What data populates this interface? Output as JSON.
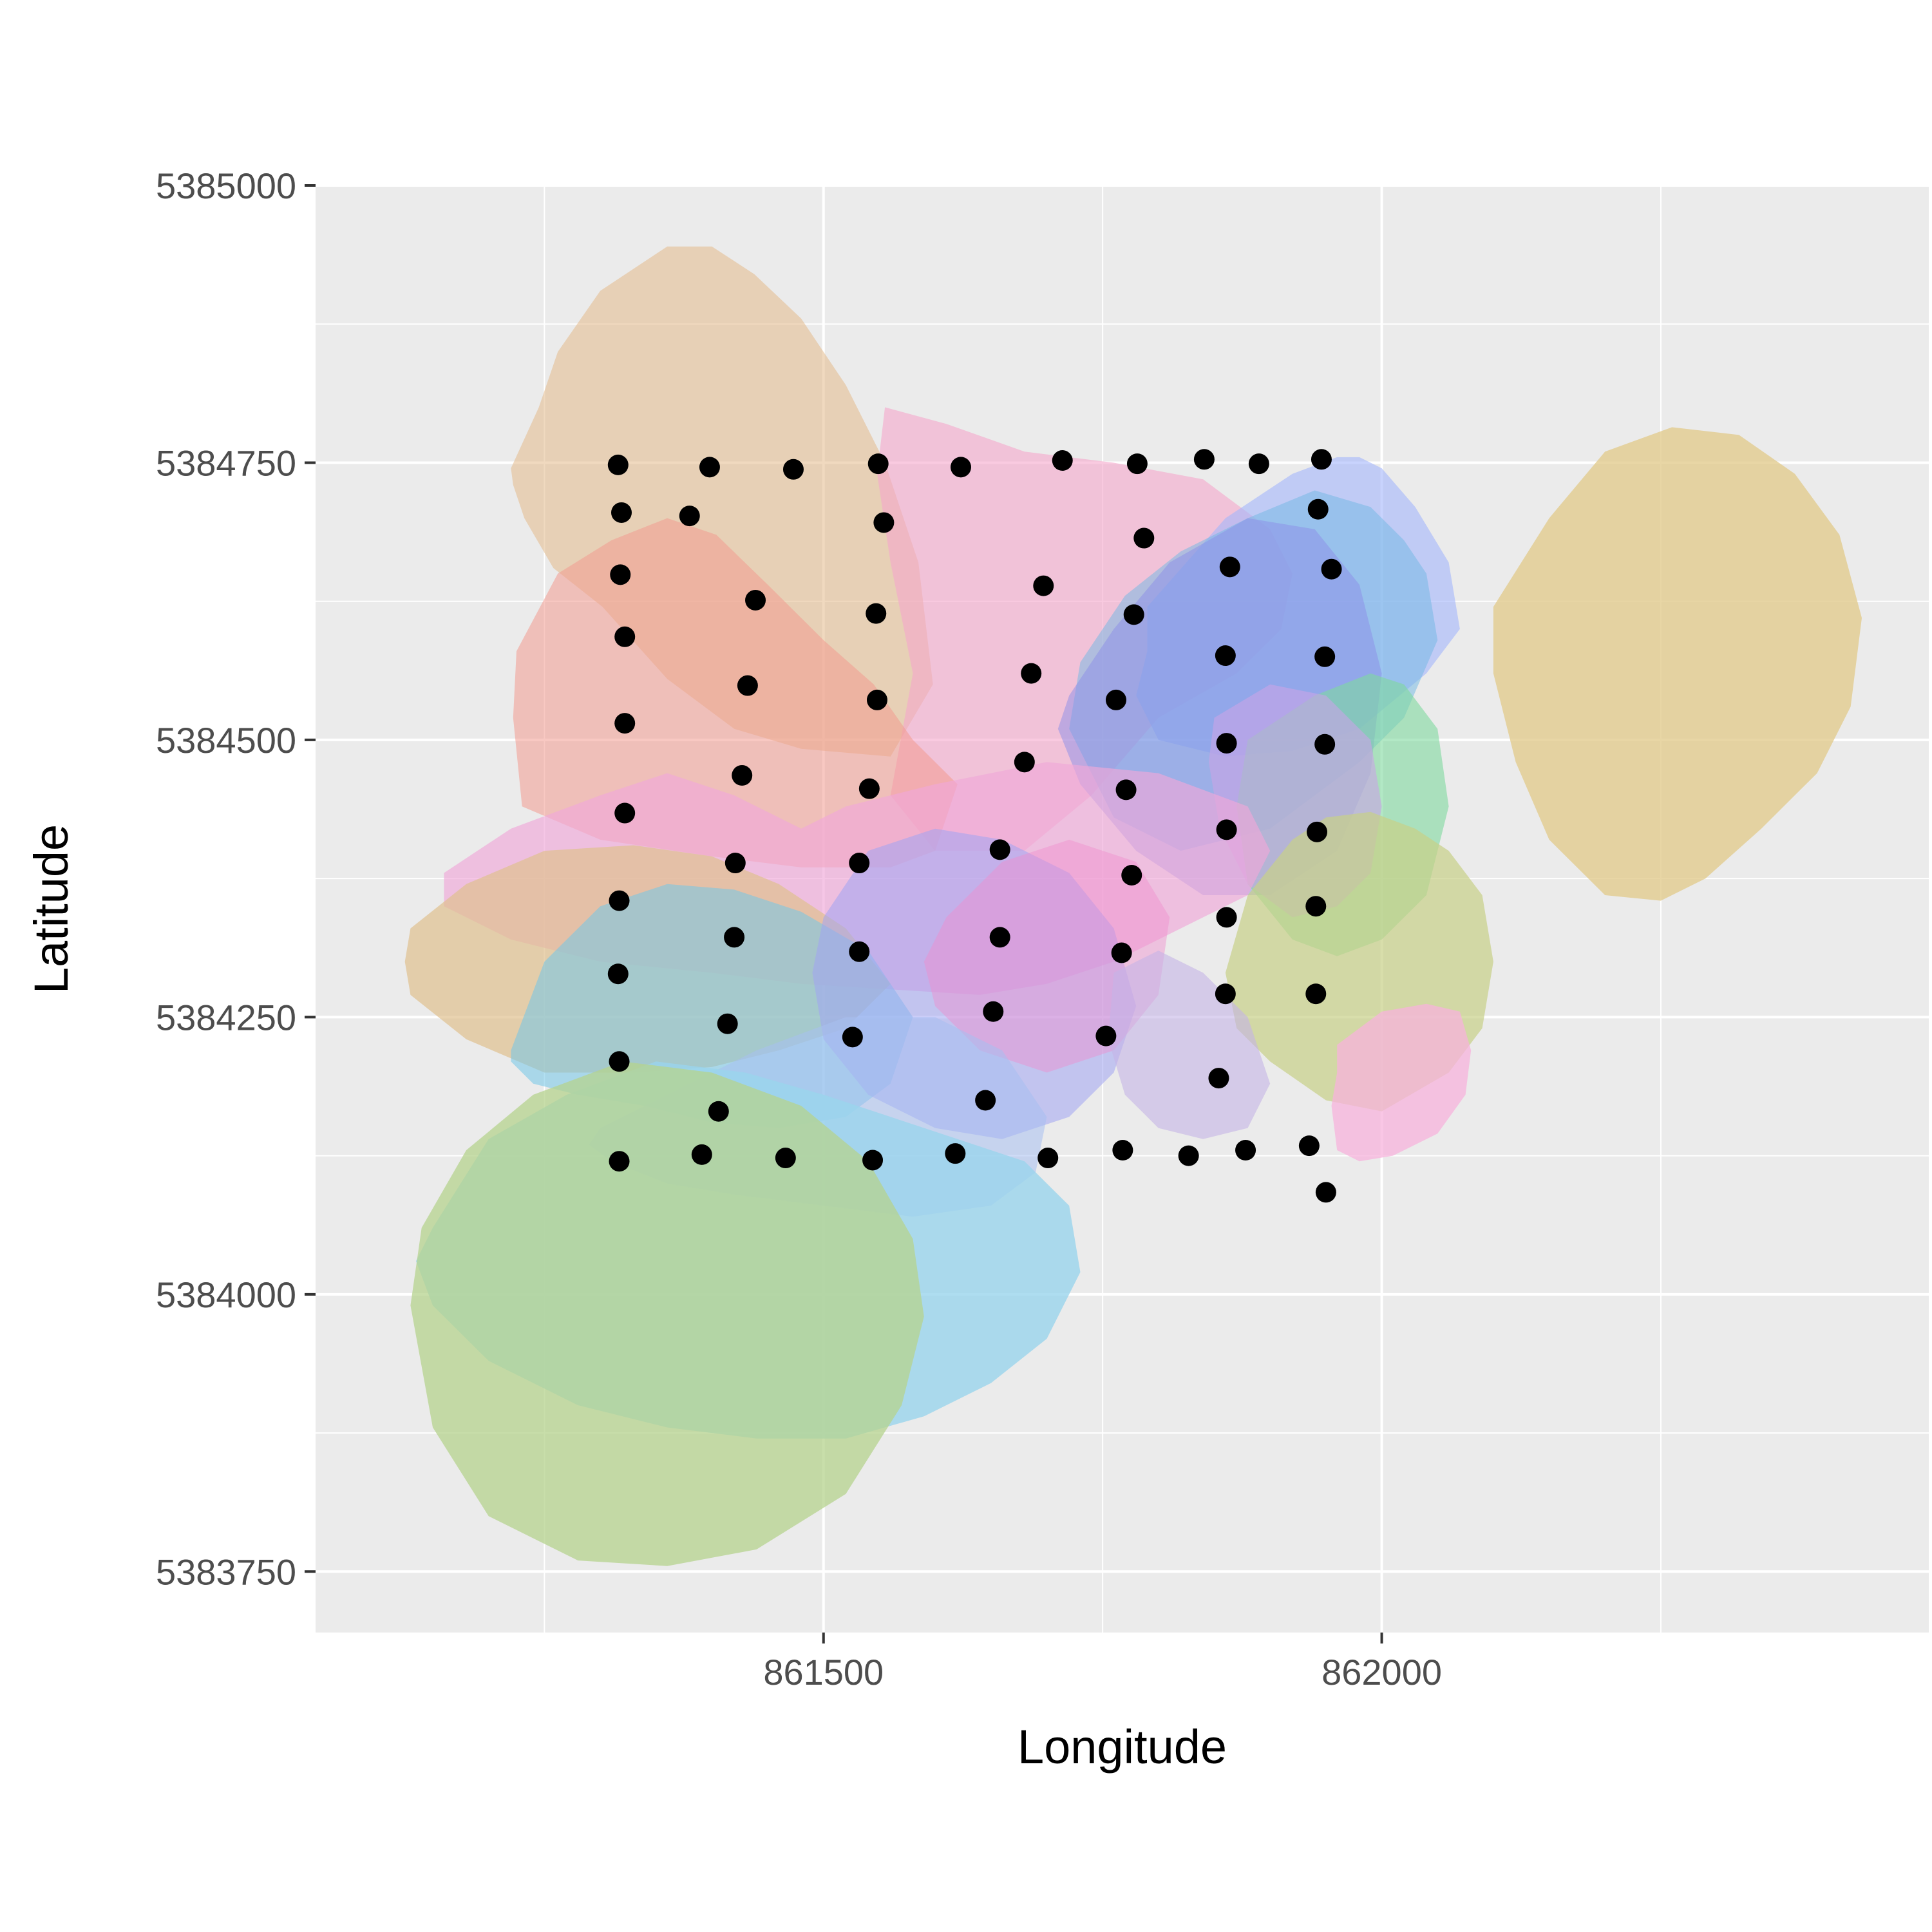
{
  "chart_data": {
    "type": "scatter",
    "xlabel": "Longitude",
    "ylabel": "Latitude",
    "xlim": [
      861045,
      862490
    ],
    "ylim": [
      5383695,
      5385000
    ],
    "x_ticks": [
      861500,
      862000
    ],
    "x_minor_ticks": [
      861250,
      861750,
      862250
    ],
    "y_ticks": [
      5383750,
      5384000,
      5384250,
      5384500,
      5384750,
      5385000
    ],
    "y_minor_ticks": [
      5383875,
      5384125,
      5384375,
      5384625,
      5384875
    ],
    "grid": true,
    "legend": "none",
    "panel_background": "#ebebeb",
    "gridline_color": "#ffffff",
    "point_color": "#000000",
    "points": [
      {
        "x": 861316,
        "y": 5384748
      },
      {
        "x": 861398,
        "y": 5384746
      },
      {
        "x": 861473,
        "y": 5384744
      },
      {
        "x": 861549,
        "y": 5384749
      },
      {
        "x": 861623,
        "y": 5384746
      },
      {
        "x": 861714,
        "y": 5384752
      },
      {
        "x": 861781,
        "y": 5384749
      },
      {
        "x": 861841,
        "y": 5384753
      },
      {
        "x": 861890,
        "y": 5384749
      },
      {
        "x": 861946,
        "y": 5384753
      },
      {
        "x": 861319,
        "y": 5384705
      },
      {
        "x": 861380,
        "y": 5384702
      },
      {
        "x": 861554,
        "y": 5384696
      },
      {
        "x": 861787,
        "y": 5384682
      },
      {
        "x": 861943,
        "y": 5384708
      },
      {
        "x": 861318,
        "y": 5384649
      },
      {
        "x": 861439,
        "y": 5384626
      },
      {
        "x": 861547,
        "y": 5384614
      },
      {
        "x": 861697,
        "y": 5384639
      },
      {
        "x": 861864,
        "y": 5384656
      },
      {
        "x": 861955,
        "y": 5384654
      },
      {
        "x": 861778,
        "y": 5384613
      },
      {
        "x": 861322,
        "y": 5384593
      },
      {
        "x": 861432,
        "y": 5384549
      },
      {
        "x": 861548,
        "y": 5384536
      },
      {
        "x": 861686,
        "y": 5384560
      },
      {
        "x": 861762,
        "y": 5384536
      },
      {
        "x": 861860,
        "y": 5384576
      },
      {
        "x": 861949,
        "y": 5384575
      },
      {
        "x": 861322,
        "y": 5384515
      },
      {
        "x": 861427,
        "y": 5384468
      },
      {
        "x": 861541,
        "y": 5384456
      },
      {
        "x": 861680,
        "y": 5384480
      },
      {
        "x": 861771,
        "y": 5384455
      },
      {
        "x": 861861,
        "y": 5384497
      },
      {
        "x": 861949,
        "y": 5384496
      },
      {
        "x": 861322,
        "y": 5384434
      },
      {
        "x": 861421,
        "y": 5384389
      },
      {
        "x": 861532,
        "y": 5384389
      },
      {
        "x": 861658,
        "y": 5384401
      },
      {
        "x": 861776,
        "y": 5384378
      },
      {
        "x": 861861,
        "y": 5384419
      },
      {
        "x": 861942,
        "y": 5384417
      },
      {
        "x": 861317,
        "y": 5384355
      },
      {
        "x": 861420,
        "y": 5384322
      },
      {
        "x": 861532,
        "y": 5384309
      },
      {
        "x": 861658,
        "y": 5384322
      },
      {
        "x": 861767,
        "y": 5384308
      },
      {
        "x": 861861,
        "y": 5384340
      },
      {
        "x": 861941,
        "y": 5384350
      },
      {
        "x": 861316,
        "y": 5384289
      },
      {
        "x": 861414,
        "y": 5384244
      },
      {
        "x": 861526,
        "y": 5384232
      },
      {
        "x": 861652,
        "y": 5384255
      },
      {
        "x": 861753,
        "y": 5384233
      },
      {
        "x": 861860,
        "y": 5384271
      },
      {
        "x": 861941,
        "y": 5384271
      },
      {
        "x": 861317,
        "y": 5384210
      },
      {
        "x": 861406,
        "y": 5384165
      },
      {
        "x": 861645,
        "y": 5384175
      },
      {
        "x": 861854,
        "y": 5384195
      },
      {
        "x": 861317,
        "y": 5384120
      },
      {
        "x": 861391,
        "y": 5384126
      },
      {
        "x": 861466,
        "y": 5384123
      },
      {
        "x": 861544,
        "y": 5384121
      },
      {
        "x": 861618,
        "y": 5384127
      },
      {
        "x": 861701,
        "y": 5384123
      },
      {
        "x": 861768,
        "y": 5384130
      },
      {
        "x": 861827,
        "y": 5384125
      },
      {
        "x": 861878,
        "y": 5384130
      },
      {
        "x": 861935,
        "y": 5384134
      },
      {
        "x": 861950,
        "y": 5384092
      }
    ],
    "hulls": [
      {
        "color": "#e3b98a",
        "opacity": 0.55,
        "x": [
          861220,
          861245,
          861262,
          861300,
          861360,
          861400,
          861438,
          861480,
          861520,
          861555,
          861585,
          861598,
          861560,
          861480,
          861420,
          861360,
          861302,
          861258,
          861232,
          861222
        ],
        "y": [
          5384745,
          5384800,
          5384850,
          5384905,
          5384945,
          5384945,
          5384920,
          5384880,
          5384820,
          5384750,
          5384660,
          5384550,
          5384485,
          5384492,
          5384510,
          5384555,
          5384620,
          5384655,
          5384700,
          5384730
        ]
      },
      {
        "color": "#f5a7cc",
        "opacity": 0.6,
        "x": [
          861555,
          861610,
          861680,
          861760,
          861840,
          861900,
          861920,
          861910,
          861870,
          861800,
          861740,
          861680,
          861600,
          861560,
          861580,
          861560,
          861548
        ],
        "y": [
          5384800,
          5384785,
          5384760,
          5384750,
          5384735,
          5384690,
          5384650,
          5384600,
          5384560,
          5384520,
          5384450,
          5384400,
          5384400,
          5384450,
          5384560,
          5384660,
          5384740
        ]
      },
      {
        "color": "#f29b90",
        "opacity": 0.55,
        "x": [
          861225,
          861262,
          861310,
          861360,
          861404,
          861450,
          861500,
          861545,
          861580,
          861620,
          861600,
          861560,
          861480,
          861400,
          861300,
          861230,
          861222
        ],
        "y": [
          5384580,
          5384650,
          5384680,
          5384700,
          5384685,
          5384640,
          5384590,
          5384550,
          5384500,
          5384460,
          5384400,
          5384385,
          5384385,
          5384395,
          5384410,
          5384440,
          5384520
        ]
      },
      {
        "color": "#e2cc8e",
        "opacity": 0.8,
        "x": [
          862100,
          862150,
          862200,
          862260,
          862320,
          862370,
          862410,
          862430,
          862420,
          862390,
          862340,
          862290,
          862250,
          862200,
          862150,
          862120,
          862100
        ],
        "y": [
          5384620,
          5384700,
          5384760,
          5384782,
          5384775,
          5384740,
          5384685,
          5384610,
          5384530,
          5384470,
          5384420,
          5384375,
          5384355,
          5384360,
          5384410,
          5384480,
          5384560
        ]
      },
      {
        "color": "#a4b6fb",
        "opacity": 0.6,
        "x": [
          861790,
          861860,
          861920,
          861960,
          861980,
          862000,
          862030,
          862060,
          862070,
          862040,
          861980,
          861920,
          861860,
          861800,
          861780,
          861790
        ],
        "y": [
          5384620,
          5384700,
          5384740,
          5384755,
          5384755,
          5384745,
          5384710,
          5384660,
          5384600,
          5384560,
          5384510,
          5384490,
          5384485,
          5384500,
          5384540,
          5384580
        ]
      },
      {
        "color": "#6fb8e4",
        "opacity": 0.5,
        "x": [
          861730,
          861770,
          861820,
          861880,
          861940,
          861990,
          862020,
          862040,
          862050,
          862020,
          861980,
          861900,
          861820,
          861760,
          861720
        ],
        "y": [
          5384570,
          5384630,
          5384670,
          5384700,
          5384725,
          5384710,
          5384680,
          5384650,
          5384590,
          5384520,
          5384480,
          5384420,
          5384400,
          5384430,
          5384510
        ]
      },
      {
        "color": "#8b8ee7",
        "opacity": 0.5,
        "x": [
          861720,
          861760,
          861810,
          861880,
          861940,
          861980,
          862000,
          861990,
          861960,
          861900,
          861840,
          861780,
          861730,
          861710
        ],
        "y": [
          5384540,
          5384600,
          5384660,
          5384700,
          5384690,
          5384640,
          5384560,
          5384470,
          5384400,
          5384360,
          5384360,
          5384400,
          5384460,
          5384510
        ]
      },
      {
        "color": "#7ed99e",
        "opacity": 0.6,
        "x": [
          861880,
          861940,
          861990,
          862020,
          862050,
          862060,
          862040,
          862000,
          861960,
          861920,
          861880,
          861870
        ],
        "y": [
          5384500,
          5384540,
          5384560,
          5384550,
          5384510,
          5384440,
          5384360,
          5384320,
          5384305,
          5384320,
          5384370,
          5384440
        ]
      },
      {
        "color": "#c9a3e6",
        "opacity": 0.6,
        "x": [
          861850,
          861900,
          861950,
          861990,
          862000,
          861990,
          861960,
          861920,
          861880,
          861855,
          861845
        ],
        "y": [
          5384520,
          5384550,
          5384540,
          5384500,
          5384440,
          5384380,
          5384350,
          5384340,
          5384370,
          5384420,
          5384480
        ]
      },
      {
        "color": "#c7d087",
        "opacity": 0.7,
        "x": [
          861950,
          861990,
          862030,
          862060,
          862090,
          862100,
          862090,
          862060,
          862000,
          861950,
          861900,
          861870,
          861860,
          861880,
          861920
        ],
        "y": [
          5384430,
          5384435,
          5384420,
          5384400,
          5384360,
          5384300,
          5384240,
          5384200,
          5384165,
          5384175,
          5384210,
          5384240,
          5384290,
          5384360,
          5384410
        ]
      },
      {
        "color": "#f7b3dc",
        "opacity": 0.75,
        "x": [
          861960,
          862000,
          862040,
          862070,
          862080,
          862075,
          862050,
          862010,
          861980,
          861960,
          861955,
          861960
        ],
        "y": [
          5384225,
          5384255,
          5384262,
          5384255,
          5384220,
          5384180,
          5384145,
          5384125,
          5384120,
          5384130,
          5384170,
          5384200
        ]
      },
      {
        "color": "#f0a8d9",
        "opacity": 0.65,
        "x": [
          861160,
          861220,
          861300,
          861360,
          861420,
          861480,
          861520,
          861600,
          861700,
          861800,
          861880,
          861900,
          861880,
          861820,
          861760,
          861700,
          861640,
          861560,
          861480,
          861400,
          861300,
          861220,
          861160
        ],
        "y": [
          5384380,
          5384420,
          5384450,
          5384470,
          5384450,
          5384420,
          5384440,
          5384460,
          5384480,
          5384470,
          5384440,
          5384400,
          5384360,
          5384330,
          5384300,
          5384280,
          5384270,
          5384275,
          5384280,
          5384290,
          5384300,
          5384320,
          5384350
        ]
      },
      {
        "color": "#e0c08f",
        "opacity": 0.7,
        "x": [
          861130,
          861180,
          861250,
          861330,
          861400,
          861460,
          861520,
          861560,
          861520,
          861460,
          861400,
          861330,
          861250,
          861180,
          861130,
          861125
        ],
        "y": [
          5384330,
          5384370,
          5384400,
          5384405,
          5384395,
          5384370,
          5384330,
          5384280,
          5384240,
          5384220,
          5384205,
          5384200,
          5384200,
          5384230,
          5384270,
          5384300
        ]
      },
      {
        "color": "#72c7e8",
        "opacity": 0.55,
        "x": [
          861220,
          861250,
          861300,
          861360,
          861420,
          861480,
          861540,
          861580,
          861560,
          861520,
          861460,
          861400,
          861340,
          861280,
          861240,
          861220
        ],
        "y": [
          5384220,
          5384300,
          5384350,
          5384370,
          5384365,
          5384345,
          5384310,
          5384250,
          5384190,
          5384160,
          5384150,
          5384155,
          5384170,
          5384180,
          5384190,
          5384210
        ]
      },
      {
        "color": "#a1a4f3",
        "opacity": 0.55,
        "x": [
          861500,
          861540,
          861600,
          861660,
          861720,
          861760,
          861780,
          861760,
          861720,
          861660,
          861600,
          861540,
          861500,
          861490
        ],
        "y": [
          5384340,
          5384400,
          5384420,
          5384410,
          5384380,
          5384330,
          5384260,
          5384200,
          5384160,
          5384140,
          5384150,
          5384180,
          5384230,
          5384290
        ]
      },
      {
        "color": "#ef8fcf",
        "opacity": 0.45,
        "x": [
          861610,
          861660,
          861720,
          861780,
          861810,
          861800,
          861760,
          861700,
          861640,
          861600,
          861590
        ],
        "y": [
          5384340,
          5384390,
          5384410,
          5384390,
          5384340,
          5384270,
          5384220,
          5384200,
          5384220,
          5384260,
          5384300
        ]
      },
      {
        "color": "#c5b4e6",
        "opacity": 0.6,
        "x": [
          861760,
          861800,
          861840,
          861880,
          861900,
          861880,
          861840,
          861800,
          861770,
          861755
        ],
        "y": [
          5384290,
          5384310,
          5384290,
          5384250,
          5384190,
          5384150,
          5384140,
          5384150,
          5384180,
          5384230
        ]
      },
      {
        "color": "#a8bff1",
        "opacity": 0.55,
        "x": [
          861300,
          861360,
          861440,
          861520,
          861600,
          861660,
          861700,
          861690,
          861650,
          861580,
          861500,
          861420,
          861360,
          861310,
          861290
        ],
        "y": [
          5384150,
          5384180,
          5384220,
          5384250,
          5384250,
          5384220,
          5384160,
          5384110,
          5384080,
          5384070,
          5384080,
          5384090,
          5384100,
          5384120,
          5384135
        ]
      },
      {
        "color": "#9ad5ec",
        "opacity": 0.8,
        "x": [
          861150,
          861200,
          861270,
          861350,
          861430,
          861500,
          861560,
          861620,
          861680,
          861720,
          861730,
          861700,
          861650,
          861590,
          861520,
          861440,
          861360,
          861280,
          861200,
          861150,
          861135
        ],
        "y": [
          5384060,
          5384140,
          5384180,
          5384210,
          5384200,
          5384180,
          5384160,
          5384140,
          5384120,
          5384080,
          5384020,
          5383960,
          5383920,
          5383890,
          5383870,
          5383870,
          5383880,
          5383900,
          5383940,
          5383990,
          5384030
        ]
      },
      {
        "color": "#b5d38e",
        "opacity": 0.75,
        "x": [
          861140,
          861180,
          861240,
          861320,
          861400,
          861480,
          861540,
          861580,
          861590,
          861570,
          861520,
          861440,
          861360,
          861280,
          861200,
          861150,
          861130
        ],
        "y": [
          5384060,
          5384130,
          5384180,
          5384210,
          5384200,
          5384170,
          5384120,
          5384050,
          5383980,
          5383900,
          5383820,
          5383770,
          5383755,
          5383760,
          5383800,
          5383880,
          5383990
        ]
      }
    ]
  }
}
